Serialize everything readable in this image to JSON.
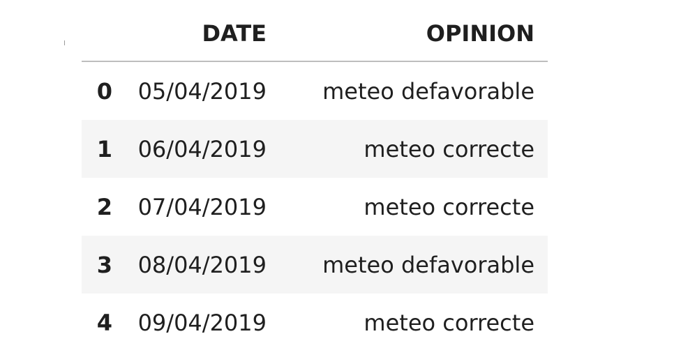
{
  "table": {
    "columns": [
      "DATE",
      "OPINION"
    ],
    "rows": [
      {
        "index": "0",
        "date": "05/04/2019",
        "opinion": "meteo defavorable"
      },
      {
        "index": "1",
        "date": "06/04/2019",
        "opinion": "meteo correcte"
      },
      {
        "index": "2",
        "date": "07/04/2019",
        "opinion": "meteo correcte"
      },
      {
        "index": "3",
        "date": "08/04/2019",
        "opinion": "meteo defavorable"
      },
      {
        "index": "4",
        "date": "09/04/2019",
        "opinion": "meteo correcte"
      }
    ]
  }
}
